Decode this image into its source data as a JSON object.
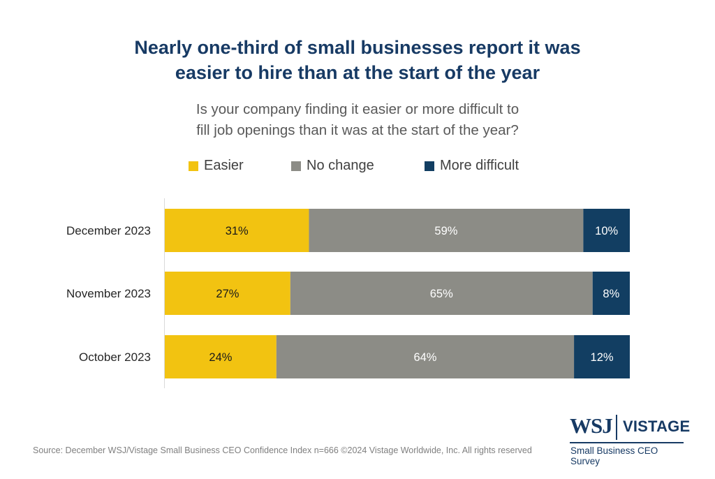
{
  "title_lines": [
    "Nearly one-third of small businesses report it was",
    "easier to hire than at the start of the year"
  ],
  "subtitle_lines": [
    "Is your company finding it easier or more difficult to",
    "fill job openings than it was at the start of the year?"
  ],
  "source": "Source: December WSJ/Vistage Small Business CEO Confidence Index n=666 ©2024 Vistage Worldwide, Inc. All rights reserved",
  "logo": {
    "wsj": "WSJ",
    "vistage": "VISTAGE",
    "tagline": "Small Business CEO Survey"
  },
  "colors": {
    "easier": "#f2c311",
    "no_change": "#8c8c86",
    "more_difficult": "#123e62",
    "title": "#173a64"
  },
  "chart_data": {
    "type": "bar",
    "orientation": "horizontal",
    "stacked": true,
    "legend_position": "top",
    "categories": [
      "December 2023",
      "November 2023",
      "October 2023"
    ],
    "series": [
      {
        "name": "Easier",
        "values": [
          31,
          27,
          24
        ],
        "labels": [
          "31%",
          "27%",
          "24%"
        ]
      },
      {
        "name": "No change",
        "values": [
          59,
          65,
          64
        ],
        "labels": [
          "59%",
          "65%",
          "64%"
        ]
      },
      {
        "name": "More difficult",
        "values": [
          10,
          8,
          12
        ],
        "labels": [
          "10%",
          "8%",
          "12%"
        ]
      }
    ],
    "xlim": [
      0,
      100
    ],
    "grid": false
  }
}
